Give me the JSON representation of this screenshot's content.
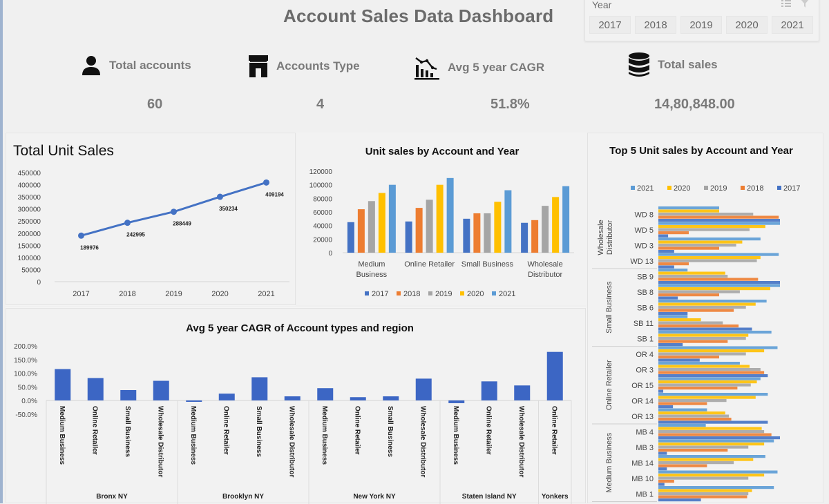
{
  "header": {
    "title": "Account Sales Data Dashboard"
  },
  "slicer": {
    "label": "Year",
    "icons": [
      "multi-select-icon",
      "clear-filter-icon"
    ],
    "items": [
      "2017",
      "2018",
      "2019",
      "2020",
      "2021"
    ]
  },
  "kpis": [
    {
      "label": "Total accounts",
      "value": "60",
      "icon": "person-icon"
    },
    {
      "label": "Accounts Type",
      "value": "4",
      "icon": "store-icon"
    },
    {
      "label": "Avg 5 year CAGR",
      "value": "51.8%",
      "icon": "chart-decline-icon"
    },
    {
      "label": "Total sales",
      "value": "14,80,848.00",
      "icon": "database-icon"
    }
  ],
  "colors": {
    "y2017": "#4472c4",
    "y2018": "#ed7d31",
    "y2019": "#a5a5a5",
    "y2020": "#ffc000",
    "y2021": "#5b9bd5",
    "line": "#4472c4",
    "cagr_bar": "#3c66c4"
  },
  "chart_data": [
    {
      "type": "line",
      "title": "Total Unit Sales",
      "categories": [
        "2017",
        "2018",
        "2019",
        "2020",
        "2021"
      ],
      "values": [
        189976,
        242995,
        288449,
        350234,
        409194
      ],
      "data_labels": [
        "189976",
        "242995",
        "288449",
        "350234",
        "409194"
      ],
      "yticks": [
        "450000",
        "400000",
        "350000",
        "300000",
        "250000",
        "200000",
        "150000",
        "100000",
        "50000",
        "0"
      ],
      "ylim": [
        0,
        450000
      ],
      "xlabel": "",
      "ylabel": "",
      "grid": false
    },
    {
      "type": "bar",
      "title": "Unit sales by Account and Year",
      "categories": [
        "Medium Business",
        "Online Retailer",
        "Small Business",
        "Wholesale Distributor"
      ],
      "category_labels": [
        [
          "Medium",
          "Business"
        ],
        [
          "Online Retailer"
        ],
        [
          "Small Business"
        ],
        [
          "Wholesale",
          "Distributor"
        ]
      ],
      "series": [
        {
          "name": "2017",
          "values": [
            45000,
            46000,
            50000,
            44000
          ]
        },
        {
          "name": "2018",
          "values": [
            64000,
            66000,
            58000,
            48000
          ]
        },
        {
          "name": "2019",
          "values": [
            76000,
            78000,
            58000,
            69000
          ]
        },
        {
          "name": "2020",
          "values": [
            88000,
            100000,
            75000,
            82000
          ]
        },
        {
          "name": "2021",
          "values": [
            100000,
            110000,
            92000,
            98000
          ]
        }
      ],
      "yticks": [
        "120000",
        "100000",
        "80000",
        "60000",
        "40000",
        "20000",
        "0"
      ],
      "ylim": [
        0,
        120000
      ],
      "legend": [
        "2017",
        "2018",
        "2019",
        "2020",
        "2021"
      ],
      "legend_position": "bottom"
    },
    {
      "type": "bar",
      "title": "Avg 5 year CAGR of Account types and region",
      "groups": [
        {
          "region": "Bronx NY",
          "categories": [
            "Medium Business",
            "Online Retailer",
            "Small Business",
            "Wholesale Distributor"
          ],
          "values": [
            115.0,
            82.0,
            38.0,
            72.0
          ]
        },
        {
          "region": "Brooklyn NY",
          "categories": [
            "Medium Business",
            "Online Retailer",
            "Small Business",
            "Wholesale Distributor"
          ],
          "values": [
            -2.0,
            25.0,
            85.0,
            15.0
          ]
        },
        {
          "region": "New York NY",
          "categories": [
            "Medium Business",
            "Online Retailer",
            "Small Business",
            "Wholesale Distributor"
          ],
          "values": [
            45.0,
            12.0,
            15.0,
            80.0
          ]
        },
        {
          "region": "Staten Island NY",
          "categories": [
            "Medium Business",
            "Online Retailer",
            "Wholesale Distributor"
          ],
          "values": [
            -10.0,
            70.0,
            55.0
          ]
        },
        {
          "region": "Yonkers",
          "categories": [
            "Online Retailer"
          ],
          "values": [
            178.0
          ]
        }
      ],
      "yticks": [
        "200.0%",
        "150.0%",
        "100.0%",
        "50.0%",
        "0.0%",
        "-50.0%"
      ],
      "ylim": [
        -50,
        200
      ],
      "unit": "%"
    },
    {
      "type": "bar",
      "orientation": "horizontal",
      "title": "Top 5 Unit sales by Account and Year",
      "legend": [
        "2021",
        "2020",
        "2019",
        "2018",
        "2017"
      ],
      "legend_position": "top",
      "groups": [
        {
          "group": "Wholesale Distributor",
          "accounts": [
            {
              "name": "WD 8",
              "values": {
                "2021": 50,
                "2020": 50,
                "2019": 78,
                "2018": 99,
                "2017": 100
              }
            },
            {
              "name": "WD 5",
              "values": {
                "2021": 100,
                "2020": 88,
                "2019": 75,
                "2018": 25,
                "2017": 8
              }
            },
            {
              "name": "WD 3",
              "values": {
                "2021": 84,
                "2020": 69,
                "2019": 64,
                "2018": 50,
                "2017": 13
              }
            },
            {
              "name": "WD 13",
              "values": {
                "2021": 99,
                "2020": 84,
                "2019": 81,
                "2018": 25,
                "2017": 13
              }
            }
          ]
        },
        {
          "group": "Small Business",
          "accounts": [
            {
              "name": "SB 9",
              "values": {
                "2021": 24,
                "2020": 55,
                "2019": 57,
                "2018": 82,
                "2017": 100
              }
            },
            {
              "name": "SB 8",
              "values": {
                "2021": 100,
                "2020": 92,
                "2019": 67,
                "2018": 50,
                "2017": 16
              }
            },
            {
              "name": "SB 6",
              "values": {
                "2021": 89,
                "2020": 80,
                "2019": 72,
                "2018": 62,
                "2017": 24
              }
            },
            {
              "name": "SB 11",
              "values": {
                "2021": 24,
                "2020": 35,
                "2019": 53,
                "2018": 66,
                "2017": 77
              }
            },
            {
              "name": "SB 1",
              "values": {
                "2021": 93,
                "2020": 74,
                "2019": 72,
                "2018": 57,
                "2017": 20
              }
            }
          ]
        },
        {
          "group": "Online Retailer",
          "accounts": [
            {
              "name": "OR 4",
              "values": {
                "2021": 98,
                "2020": 87,
                "2019": 72,
                "2018": 50,
                "2017": 34
              }
            },
            {
              "name": "OR 3",
              "values": {
                "2021": 67,
                "2020": 75,
                "2019": 84,
                "2018": 87,
                "2017": 90
              }
            },
            {
              "name": "OR 15",
              "values": {
                "2021": 84,
                "2020": 81,
                "2019": 76,
                "2018": 65,
                "2017": 4
              }
            },
            {
              "name": "OR 14",
              "values": {
                "2021": 90,
                "2020": 80,
                "2019": 56,
                "2018": 40,
                "2017": 12
              }
            },
            {
              "name": "OR 13",
              "values": {
                "2021": 40,
                "2020": 55,
                "2019": 58,
                "2018": 60,
                "2017": 90
              }
            }
          ]
        },
        {
          "group": "Medium Business",
          "accounts": [
            {
              "name": "MB 4",
              "values": {
                "2021": 39,
                "2020": 85,
                "2019": 87,
                "2018": 93,
                "2017": 100
              }
            },
            {
              "name": "MB 3",
              "values": {
                "2021": 95,
                "2020": 87,
                "2019": 74,
                "2018": 57,
                "2017": 7
              }
            },
            {
              "name": "MB 14",
              "values": {
                "2021": 88,
                "2020": 78,
                "2019": 62,
                "2018": 40,
                "2017": 7
              }
            },
            {
              "name": "MB 10",
              "values": {
                "2021": 98,
                "2020": 87,
                "2019": 74,
                "2018": 13,
                "2017": 5
              }
            },
            {
              "name": "MB 1",
              "values": {
                "2021": 95,
                "2020": 77,
                "2019": 74,
                "2018": 73,
                "2017": 35
              }
            }
          ]
        }
      ]
    }
  ]
}
